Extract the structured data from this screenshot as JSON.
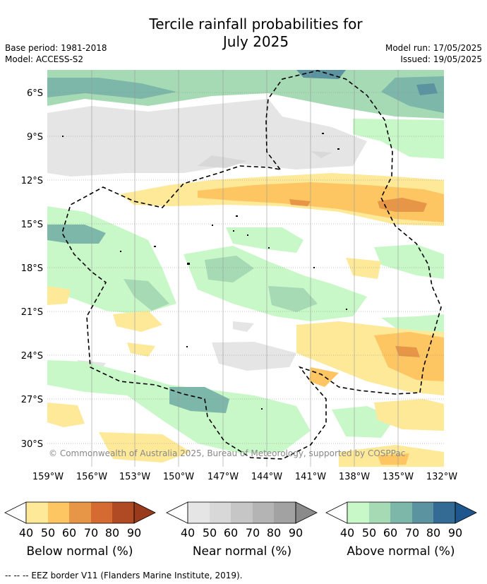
{
  "title_line1": "Tercile rainfall probabilities for",
  "title_line2": "July 2025",
  "meta": {
    "base_period": "Base period: 1981-2018",
    "model": "Model: ACCESS-S2",
    "model_run": "Model run: 17/05/2025",
    "issued": "Issued: 19/05/2025"
  },
  "map": {
    "lat_labels": [
      "6°S",
      "9°S",
      "12°S",
      "15°S",
      "18°S",
      "21°S",
      "24°S",
      "27°S",
      "30°S"
    ],
    "lon_labels": [
      "159°W",
      "156°W",
      "153°W",
      "150°W",
      "147°W",
      "144°W",
      "141°W",
      "138°W",
      "135°W",
      "132°W"
    ],
    "copyright": "© Commonwealth of Australia 2025, Bureau of Meteorology, supported by COSPPac"
  },
  "legends": [
    {
      "name": "Below normal (%)",
      "ticks": [
        "40",
        "50",
        "60",
        "70",
        "80",
        "90"
      ],
      "colors": [
        "#fde998",
        "#fdc662",
        "#e79546",
        "#d66a33",
        "#b04a24",
        "#9a3a1c"
      ]
    },
    {
      "name": "Near normal (%)",
      "ticks": [
        "40",
        "50",
        "60",
        "70",
        "80",
        "90"
      ],
      "colors": [
        "#e5e5e5",
        "#d8d8d8",
        "#c6c6c6",
        "#b4b4b4",
        "#a2a2a2",
        "#8a8a8a"
      ]
    },
    {
      "name": "Above normal (%)",
      "ticks": [
        "40",
        "50",
        "60",
        "70",
        "80",
        "90"
      ],
      "colors": [
        "#c9f8c8",
        "#a5dab4",
        "#7cb7a9",
        "#5c93a0",
        "#336b95",
        "#1e578d"
      ]
    }
  ],
  "footer": "--  --  -- EEZ border V11 (Flanders Marine Institute, 2019)."
}
